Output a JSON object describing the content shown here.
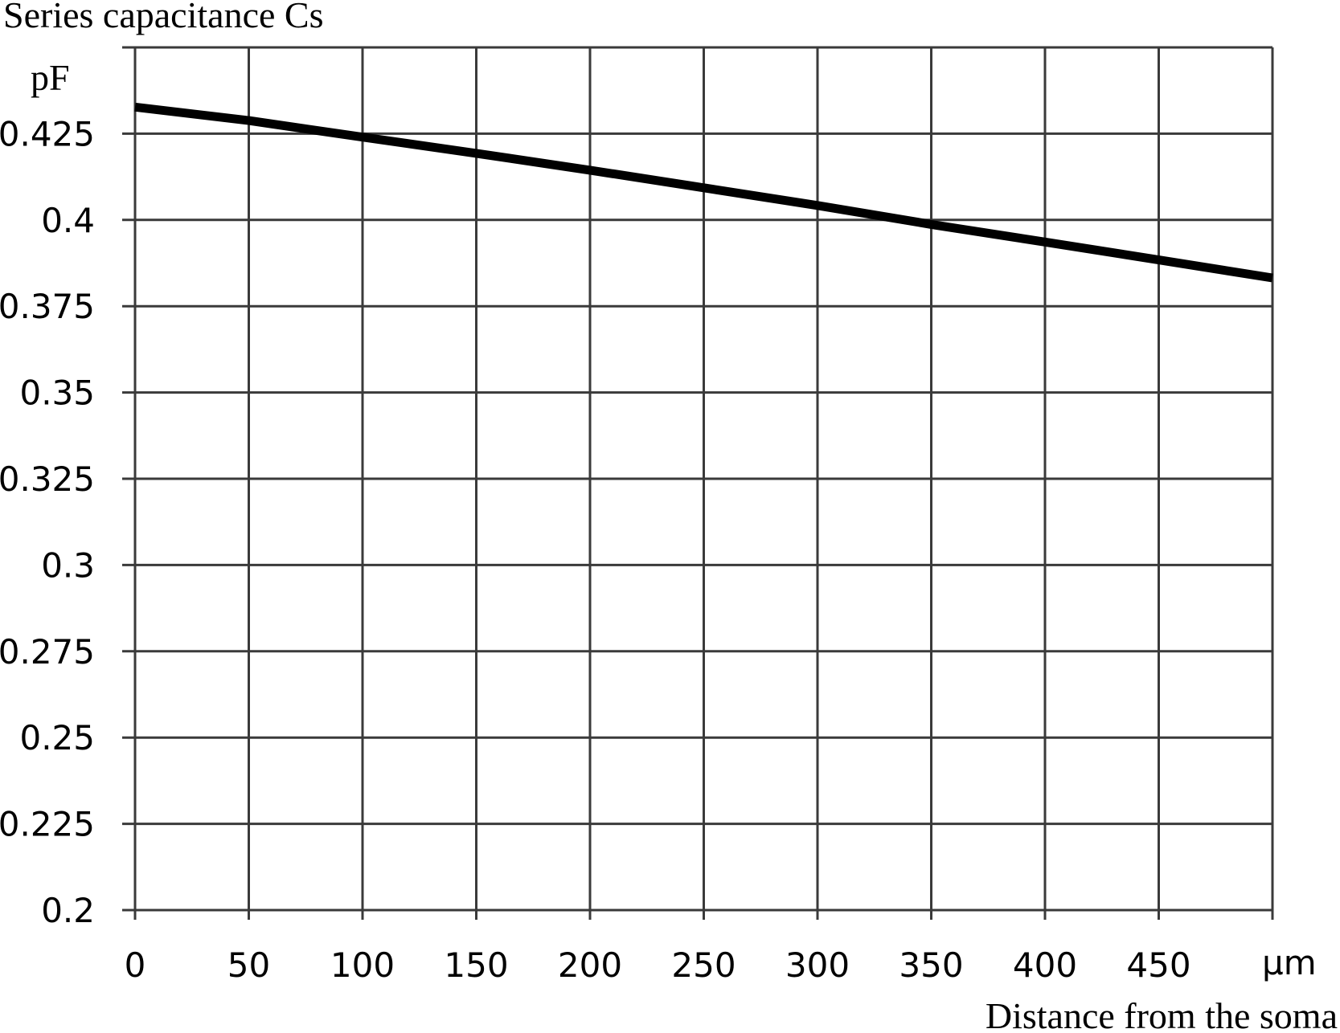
{
  "chart_data": {
    "type": "line",
    "title": "Series capacitance Cs",
    "ylabel": "pF",
    "xlabel": "Distance from the soma",
    "xunit": "μm",
    "xlim": [
      0,
      500
    ],
    "ylim": [
      0.2,
      0.45
    ],
    "x_ticks": [
      0,
      50,
      100,
      150,
      200,
      250,
      300,
      350,
      400,
      450
    ],
    "x_tick_labels": [
      "0",
      "50",
      "100",
      "150",
      "200",
      "250",
      "300",
      "350",
      "400",
      "450"
    ],
    "y_ticks": [
      0.2,
      0.225,
      0.25,
      0.275,
      0.3,
      0.325,
      0.35,
      0.375,
      0.4,
      0.425
    ],
    "y_tick_labels": [
      "0.2",
      "0.225",
      "0.25",
      "0.275",
      "0.3",
      "0.325",
      "0.35",
      "0.375",
      "0.4",
      "0.425"
    ],
    "grid": true,
    "series": [
      {
        "x": [
          0,
          50,
          100,
          150,
          200,
          250,
          300,
          350,
          400,
          450,
          500
        ],
        "values": [
          0.4327,
          0.4288,
          0.424,
          0.4193,
          0.4144,
          0.4093,
          0.4042,
          0.3987,
          0.3936,
          0.3884,
          0.3832
        ],
        "color": "#000000"
      }
    ],
    "grid_color": "#3a3a3a"
  }
}
